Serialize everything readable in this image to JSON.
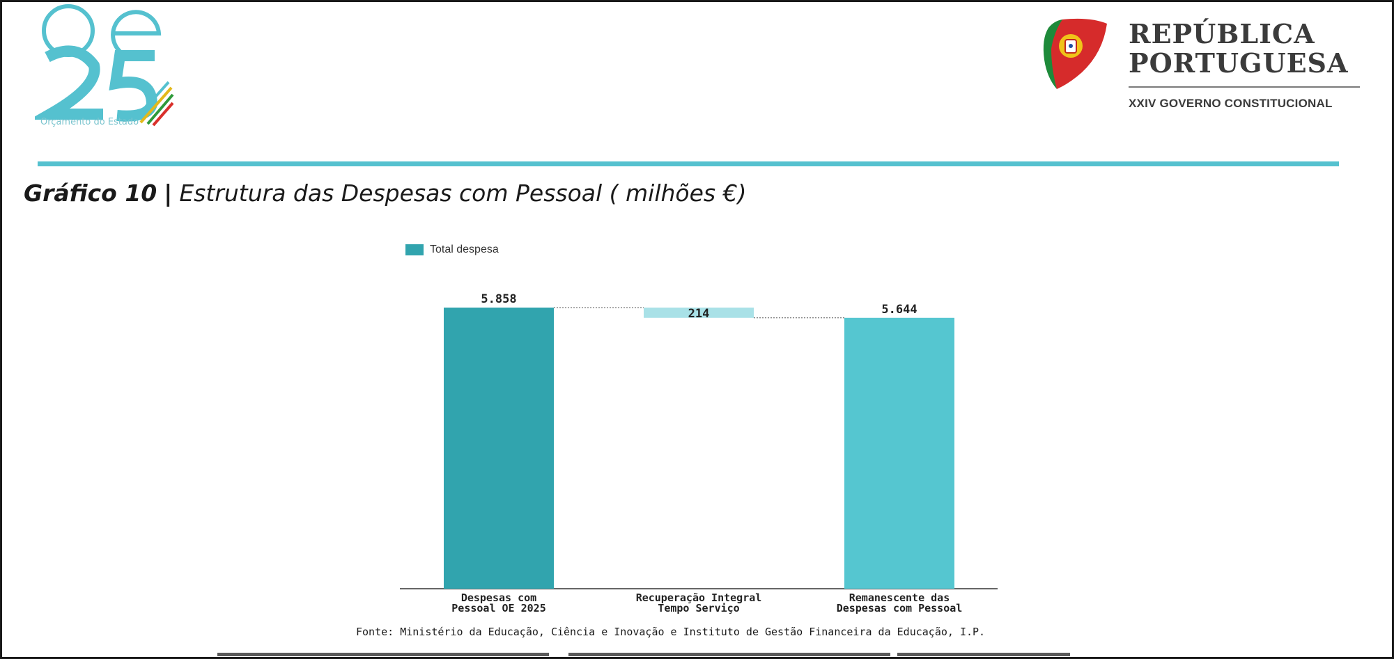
{
  "branding": {
    "oe_caption": "Orçamento do Estado",
    "rp_line1": "REPÚBLICA",
    "rp_line2": "PORTUGUESA",
    "rp_sub": "XXIV GOVERNO CONSTITUCIONAL"
  },
  "heading": {
    "number": "Gráfico 10",
    "separator": "|",
    "title": "Estrutura das Despesas com Pessoal ( milhões €)"
  },
  "source": "Fonte: Ministério da Educação, Ciência e Inovação e Instituto de Gestão Financeira da Educação, I.P.",
  "colors": {
    "accent": "#55c1cf",
    "bar_total": "#31a4ae",
    "bar_decrease": "#a9e1e7",
    "bar_remaining": "#55c6d0"
  },
  "chart_data": {
    "type": "bar",
    "subtype": "waterfall",
    "legend": [
      "Total despesa"
    ],
    "legend_position": "top-left",
    "categories": [
      [
        "Despesas com",
        "Pessoal OE 2025"
      ],
      [
        "Recuperação Integral",
        "Tempo Serviço"
      ],
      [
        "Remanescente das",
        "Despesas com Pessoal"
      ]
    ],
    "values": [
      5858,
      -214,
      5644
    ],
    "data_labels": [
      "5.858",
      "214",
      "5.644"
    ],
    "ylim": [
      0,
      5858
    ],
    "grid": false
  }
}
